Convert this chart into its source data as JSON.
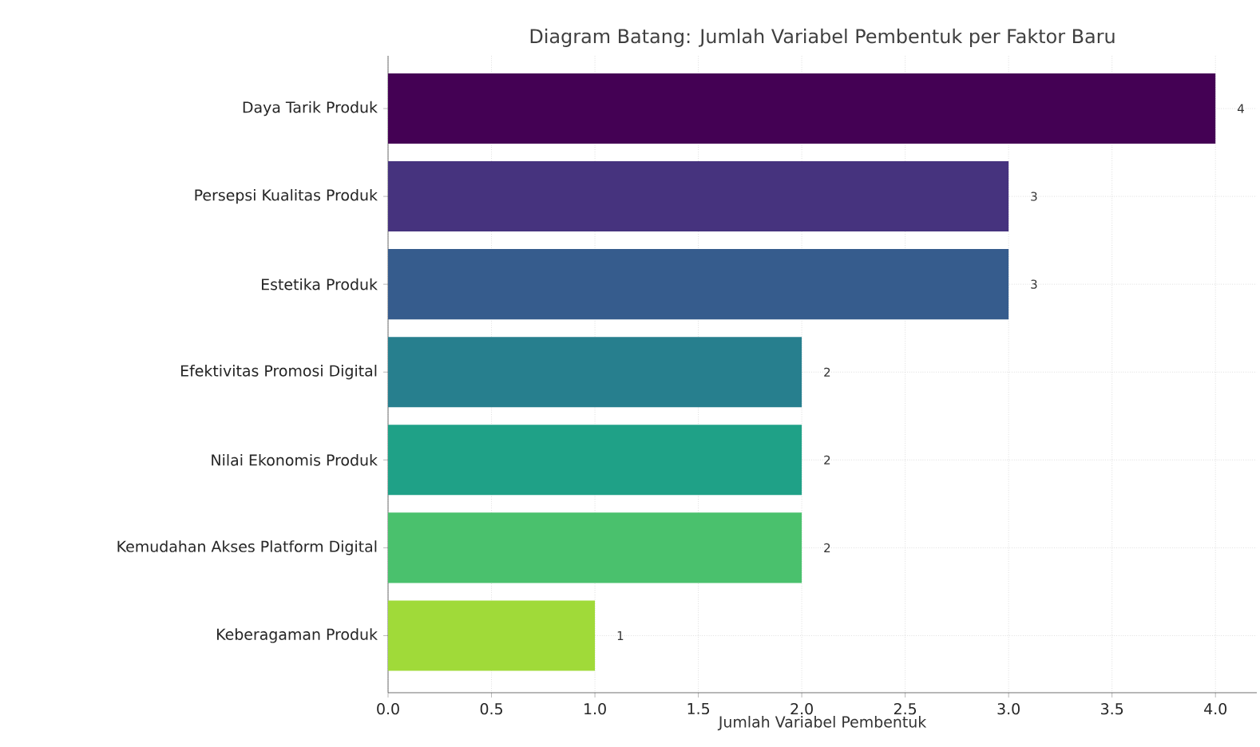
{
  "chart_data": {
    "type": "bar",
    "orientation": "horizontal",
    "title": "Diagram Batang: Jumlah Variabel Pembentuk per Faktor Baru",
    "xlabel": "Jumlah Variabel Pembentuk",
    "categories": [
      "Daya Tarik Produk",
      "Persepsi Kualitas Produk",
      "Estetika Produk",
      "Efektivitas Promosi Digital",
      "Nilai Ekonomis Produk",
      "Kemudahan Akses Platform Digital",
      "Keberagaman Produk"
    ],
    "values": [
      4,
      3,
      3,
      2,
      2,
      2,
      1
    ],
    "colors": [
      "#440154",
      "#46337e",
      "#365c8d",
      "#277f8e",
      "#1fa187",
      "#4ac16d",
      "#a0da39"
    ],
    "xlim": [
      0,
      4.2
    ],
    "xticks": [
      {
        "value": 0,
        "label": "0.0"
      },
      {
        "value": 0.5,
        "label": "0.5"
      },
      {
        "value": 1,
        "label": "1.0"
      },
      {
        "value": 1.5,
        "label": "1.5"
      },
      {
        "value": 2,
        "label": "2.0"
      },
      {
        "value": 2.5,
        "label": "2.5"
      },
      {
        "value": 3,
        "label": "3.0"
      },
      {
        "value": 3.5,
        "label": "3.5"
      },
      {
        "value": 4,
        "label": "4.0"
      }
    ],
    "grid": true,
    "data_labels": true
  }
}
